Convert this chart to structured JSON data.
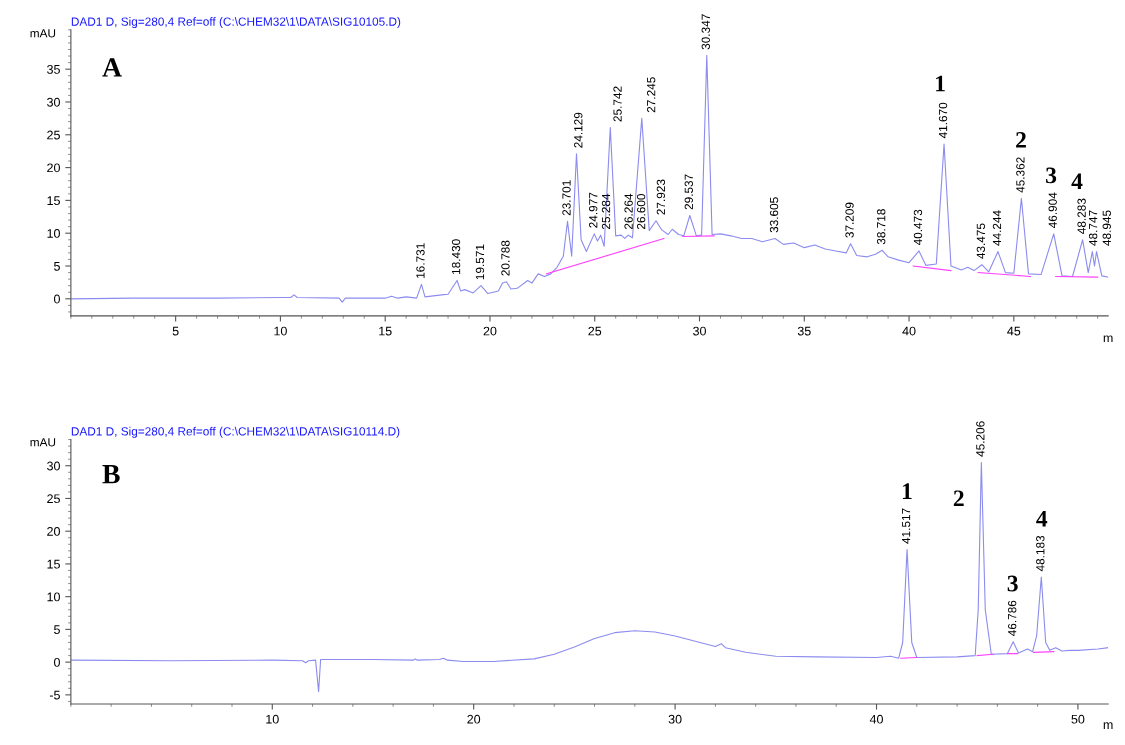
{
  "chart_data": [
    {
      "type": "line",
      "title": "DAD1 D, Sig=280,4 Ref=off (C:\\CHEM32\\1\\DATA\\SIG10105.D)",
      "ylabel": "mAU",
      "xlabel": "m",
      "xlim": [
        0,
        49.5
      ],
      "ylim": [
        -2.6,
        41
      ],
      "xticks": [
        5,
        10,
        15,
        20,
        25,
        30,
        35,
        40,
        45
      ],
      "yticks": [
        0,
        5,
        10,
        15,
        20,
        25,
        30,
        35
      ],
      "grid": false,
      "legend": false,
      "line_style": "solid",
      "marker": "none",
      "series": [
        {
          "color": "#8c8cf0",
          "x": [
            0,
            3,
            7,
            10,
            10.5,
            10.65,
            10.8,
            12.8,
            12.95,
            13.1,
            15,
            15.3,
            15.6,
            16.0,
            16.5,
            16.731,
            16.9,
            17.7,
            18.0,
            18.43,
            18.6,
            18.8,
            19.2,
            19.571,
            19.9,
            20.4,
            20.6,
            20.788,
            21.0,
            21.3,
            21.8,
            22.0,
            22.3,
            22.6,
            22.9,
            23.2,
            23.5,
            23.701,
            23.9,
            24.129,
            24.35,
            24.6,
            24.977,
            25.13,
            25.284,
            25.45,
            25.742,
            26.0,
            26.264,
            26.43,
            26.6,
            26.8,
            27.245,
            27.6,
            27.923,
            28.2,
            28.5,
            28.7,
            29.0,
            29.25,
            29.537,
            29.85,
            30.1,
            30.347,
            30.6,
            31,
            31.5,
            32,
            32.5,
            33,
            33.605,
            34,
            34.5,
            35,
            35.5,
            36,
            36.5,
            37.0,
            37.209,
            37.5,
            38,
            38.4,
            38.718,
            39.0,
            39.5,
            40.0,
            40.473,
            40.8,
            41.3,
            41.67,
            42.0,
            42.5,
            42.8,
            43.1,
            43.475,
            43.8,
            44.244,
            44.6,
            45.0,
            45.362,
            45.7,
            46.3,
            46.904,
            47.3,
            47.8,
            48.283,
            48.55,
            48.747,
            48.85,
            48.945,
            49.2,
            49.5
          ],
          "values": [
            0.0,
            0.1,
            0.1,
            0.2,
            0.2,
            0.6,
            0.2,
            0.1,
            -0.5,
            0.1,
            0.1,
            0.4,
            0.1,
            0.3,
            0.1,
            2.2,
            0.3,
            0.6,
            0.7,
            2.8,
            1.2,
            1.4,
            0.9,
            2.0,
            0.8,
            1.2,
            2.4,
            2.6,
            1.5,
            1.6,
            2.8,
            2.4,
            3.8,
            3.4,
            3.8,
            4.8,
            6.5,
            11.8,
            6.5,
            22.1,
            9.0,
            7.2,
            9.9,
            8.8,
            9.7,
            8.0,
            26.1,
            9.6,
            9.7,
            9.2,
            9.7,
            9.3,
            27.5,
            10.4,
            11.9,
            10.5,
            9.8,
            10.6,
            9.8,
            9.6,
            12.7,
            9.6,
            9.7,
            37.1,
            9.8,
            9.9,
            9.6,
            9.2,
            9.2,
            8.7,
            9.2,
            8.3,
            8.5,
            7.8,
            8.2,
            7.6,
            7.3,
            7.0,
            8.4,
            6.6,
            6.4,
            6.8,
            7.4,
            6.4,
            5.9,
            5.5,
            7.3,
            5.1,
            5.3,
            23.6,
            5.0,
            4.4,
            4.8,
            4.3,
            5.2,
            4.1,
            7.2,
            4.0,
            3.9,
            15.3,
            3.8,
            3.7,
            9.9,
            3.5,
            3.4,
            9.0,
            4.0,
            7.2,
            5.0,
            7.2,
            3.5,
            3.3
          ]
        },
        {
          "color": "#ff40ff",
          "x": [
            22.7,
            28.3,
            28.7,
            29.2,
            30.7,
            35,
            40.2,
            42.0,
            42.6,
            43.3,
            45.8,
            46.4,
            47.0,
            49.0
          ],
          "values": [
            3.8,
            9.2,
            null,
            9.5,
            9.6,
            null,
            5.0,
            4.3,
            null,
            4.0,
            3.4,
            null,
            3.4,
            3.3
          ]
        }
      ],
      "annotations": [
        "A",
        {
          "text": "16.731",
          "x": 16.731,
          "y": 2.2
        },
        {
          "text": "18.430",
          "x": 18.43,
          "y": 2.8
        },
        {
          "text": "19.571",
          "x": 19.571,
          "y": 2.0
        },
        {
          "text": "20.788",
          "x": 20.788,
          "y": 2.6
        },
        {
          "text": "23.701",
          "x": 23.701,
          "y": 11.8
        },
        {
          "text": "24.129",
          "x": 24.129,
          "y": 22.1
        },
        {
          "text": "24.977",
          "x": 24.977,
          "y": 9.9
        },
        {
          "text": "25.284",
          "x": 25.284,
          "y": 9.7
        },
        {
          "text": "25.742",
          "x": 25.742,
          "y": 26.1
        },
        {
          "text": "26.264",
          "x": 26.264,
          "y": 9.7
        },
        {
          "text": "26.600",
          "x": 26.6,
          "y": 9.7
        },
        {
          "text": "27.245",
          "x": 27.245,
          "y": 27.5
        },
        {
          "text": "27.923",
          "x": 27.923,
          "y": 11.9
        },
        {
          "text": "29.537",
          "x": 29.537,
          "y": 12.7
        },
        {
          "text": "30.347",
          "x": 30.347,
          "y": 37.1
        },
        {
          "text": "33.605",
          "x": 33.605,
          "y": 9.2
        },
        {
          "text": "37.209",
          "x": 37.209,
          "y": 8.4
        },
        {
          "text": "38.718",
          "x": 38.718,
          "y": 7.4
        },
        {
          "text": "40.473",
          "x": 40.473,
          "y": 7.3
        },
        {
          "text": "41.670",
          "x": 41.67,
          "y": 23.6
        },
        {
          "text": "43.475",
          "x": 43.475,
          "y": 5.2
        },
        {
          "text": "44.244",
          "x": 44.244,
          "y": 7.2
        },
        {
          "text": "45.362",
          "x": 45.362,
          "y": 15.3
        },
        {
          "text": "46.904",
          "x": 46.904,
          "y": 9.9
        },
        {
          "text": "48.283",
          "x": 48.283,
          "y": 9.0
        },
        {
          "text": "48.747",
          "x": 48.747,
          "y": 7.2
        },
        {
          "text": "48.945",
          "x": 48.945,
          "y": 7.2
        },
        "1",
        "2",
        "3",
        "4"
      ]
    },
    {
      "type": "line",
      "title": "DAD1 D, Sig=280,4 Ref=off (C:\\CHEM32\\1\\DATA\\SIG10114.D)",
      "ylabel": "mAU",
      "xlabel": "m",
      "xlim": [
        0,
        51.5
      ],
      "ylim": [
        -6.4,
        34
      ],
      "xticks": [
        10,
        20,
        30,
        40,
        50
      ],
      "yticks": [
        -5,
        0,
        5,
        10,
        15,
        20,
        25,
        30
      ],
      "grid": false,
      "legend": false,
      "line_style": "solid",
      "marker": "none",
      "series": [
        {
          "color": "#8c8cf0",
          "x": [
            0,
            5,
            10,
            11.5,
            11.65,
            11.8,
            12.15,
            12.3,
            12.4,
            15,
            17,
            17.1,
            17.2,
            18.3,
            18.5,
            18.7,
            19.5,
            21,
            23,
            24,
            25,
            26,
            27,
            28,
            29,
            30,
            31,
            32,
            32.3,
            32.5,
            33.5,
            35,
            37,
            40,
            40.7,
            41.1,
            41.3,
            41.517,
            41.75,
            42,
            44,
            44.9,
            45.05,
            45.206,
            45.4,
            45.7,
            46.5,
            46.786,
            47.05,
            47.5,
            47.75,
            47.95,
            48.183,
            48.4,
            48.6,
            48.9,
            49.2,
            49.6,
            50,
            51,
            51.5
          ],
          "values": [
            0.3,
            0.2,
            0.3,
            0.2,
            -0.1,
            0.2,
            0.3,
            -4.5,
            0.4,
            0.4,
            0.3,
            0.5,
            0.3,
            0.4,
            0.6,
            0.3,
            0.1,
            0.1,
            0.5,
            1.2,
            2.3,
            3.6,
            4.5,
            4.8,
            4.6,
            4.0,
            3.2,
            2.4,
            2.8,
            2.2,
            1.5,
            0.9,
            0.8,
            0.7,
            0.9,
            0.6,
            3.0,
            17.2,
            3.0,
            0.7,
            0.8,
            1.0,
            8.0,
            30.5,
            8.0,
            1.2,
            1.3,
            3.1,
            1.4,
            2.0,
            1.6,
            4.0,
            13.0,
            3.0,
            1.8,
            2.2,
            1.7,
            1.8,
            1.8,
            2.0,
            2.2
          ]
        },
        {
          "color": "#ff40ff",
          "x": [
            41.2,
            42.0,
            43.5,
            45.0,
            45.8,
            46.2,
            46.5,
            47.0,
            47.4,
            47.8,
            48.8
          ],
          "values": [
            0.6,
            0.7,
            null,
            1.0,
            1.2,
            null,
            1.3,
            1.3,
            null,
            1.5,
            1.6
          ]
        }
      ],
      "annotations": [
        "B",
        {
          "text": "41.517",
          "x": 41.517,
          "y": 17.2
        },
        {
          "text": "45.206",
          "x": 45.206,
          "y": 30.5
        },
        {
          "text": "46.786",
          "x": 46.786,
          "y": 3.1
        },
        {
          "text": "48.183",
          "x": 48.183,
          "y": 13.0
        },
        "1",
        "2",
        "3",
        "4"
      ]
    }
  ]
}
